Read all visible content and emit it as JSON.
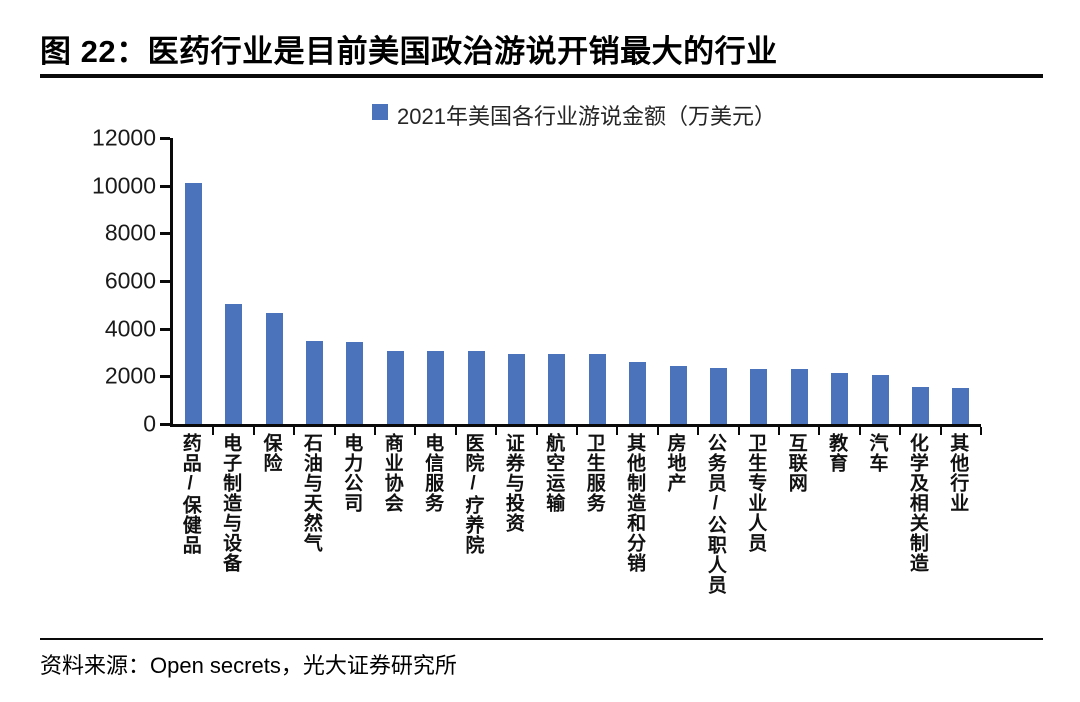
{
  "page": {
    "title": "图 22：医药行业是目前美国政治游说开销最大的行业",
    "source": "资料来源：Open secrets，光大证券研究所"
  },
  "chart_data": {
    "type": "bar",
    "title": "图 22：医药行业是目前美国政治游说开销最大的行业",
    "legend": "2021年美国各行业游说金额（万美元）",
    "legend_position": "top-center",
    "grid": false,
    "bar_color": "#4A73BC",
    "axis_color": "#0a0a0a",
    "xlabel": "",
    "ylabel": "",
    "ylim": [
      0,
      12000
    ],
    "yticks": [
      0,
      2000,
      4000,
      6000,
      8000,
      10000,
      12000
    ],
    "categories": [
      "药品/保健品",
      "电子制造与设备",
      "保险",
      "石油与天然气",
      "电力公司",
      "商业协会",
      "电信服务",
      "医院/疗养院",
      "证券与投资",
      "航空运输",
      "卫生服务",
      "其他制造和分销",
      "房地产",
      "公务员/公职人员",
      "卫生专业人员",
      "互联网",
      "教育",
      "汽车",
      "化学及相关制造",
      "其他行业"
    ],
    "values": [
      10100,
      5050,
      4650,
      3500,
      3450,
      3050,
      3050,
      3050,
      2950,
      2950,
      2950,
      2600,
      2450,
      2350,
      2300,
      2300,
      2150,
      2050,
      1550,
      1500
    ]
  }
}
